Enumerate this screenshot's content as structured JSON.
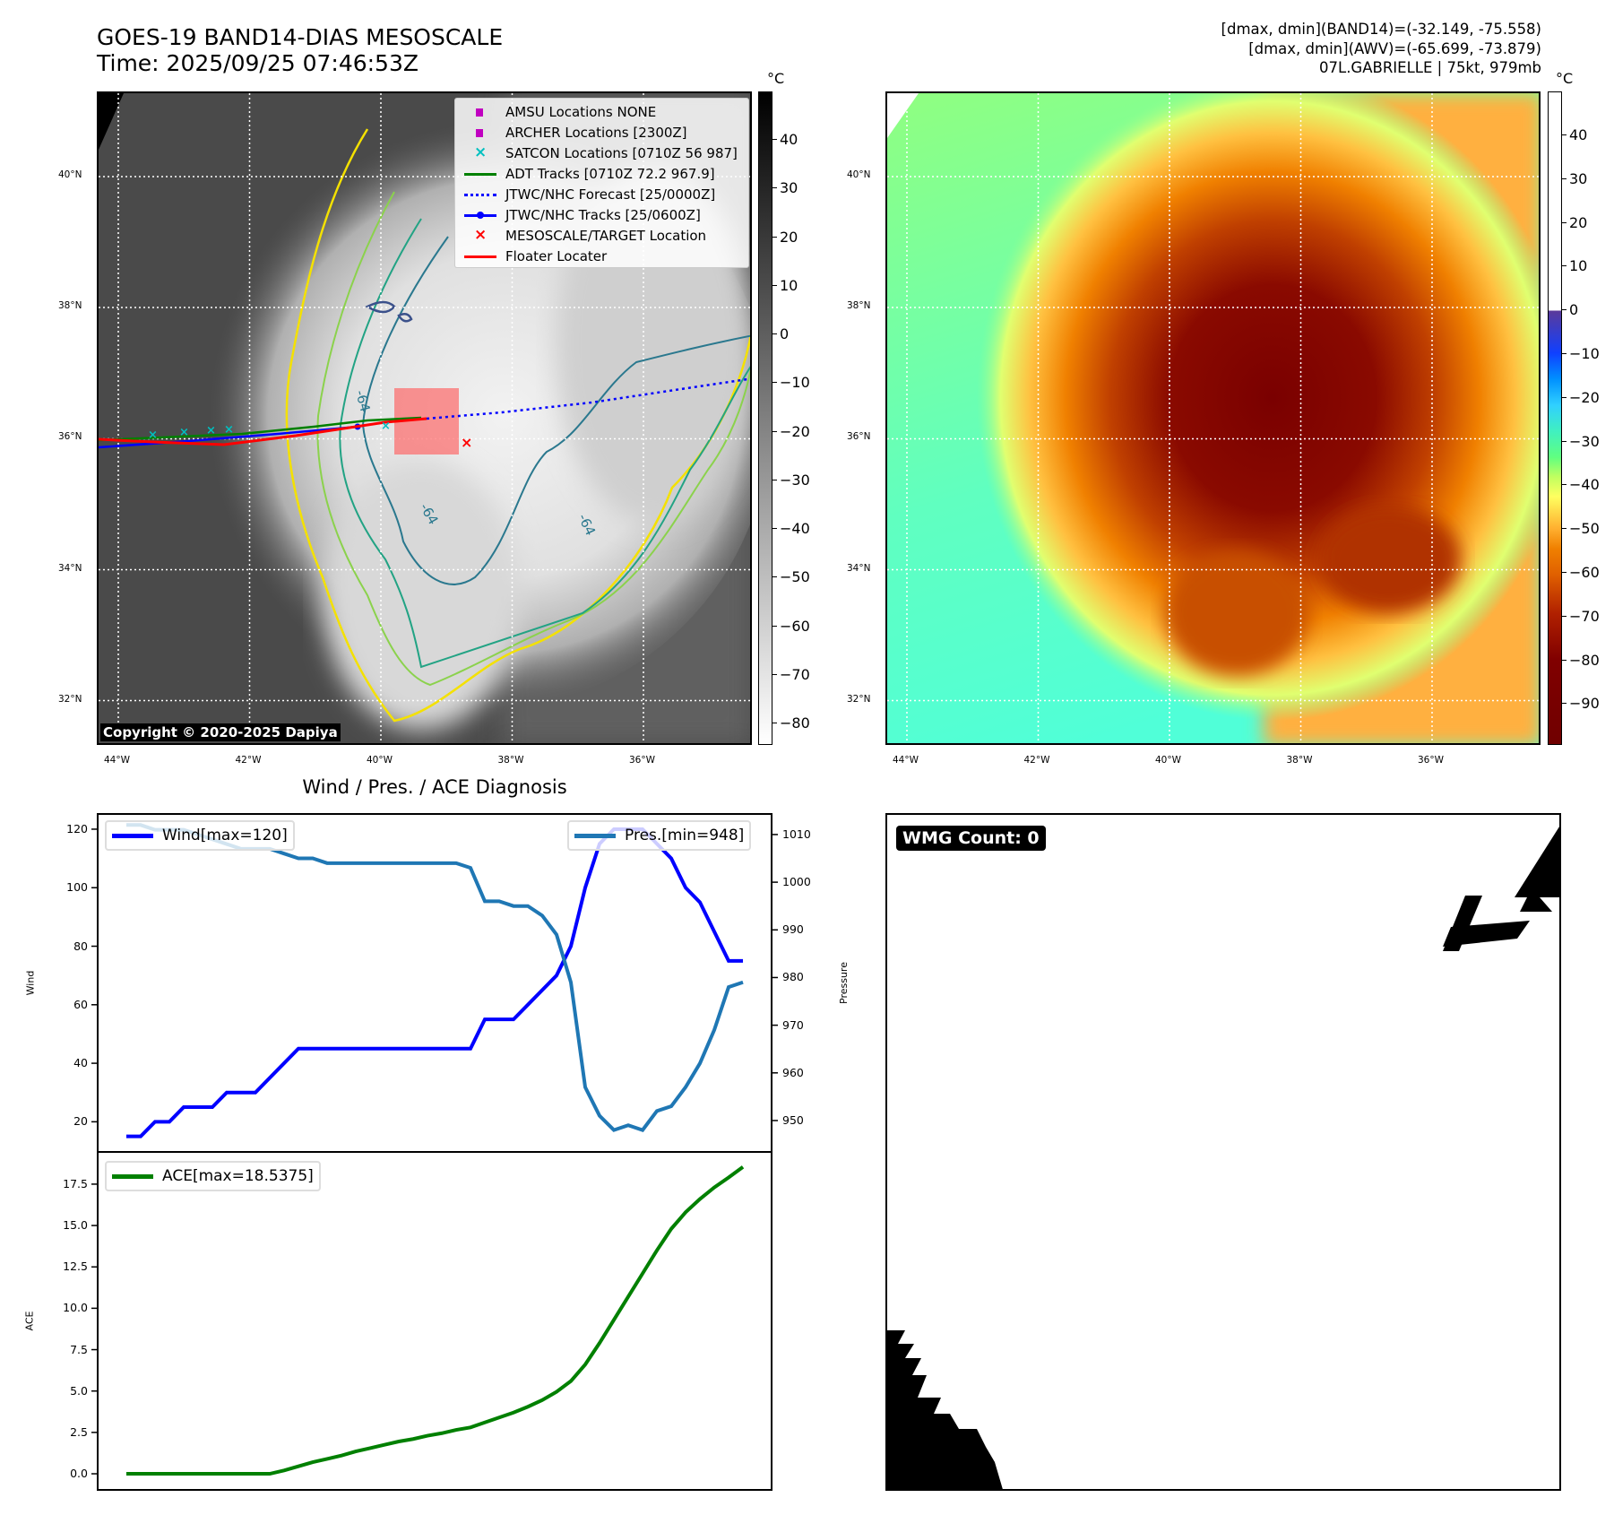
{
  "header": {
    "title_line1": "GOES-19 BAND14-DIAS MESOSCALE",
    "title_line2": "Time: 2025/09/25 07:46:53Z",
    "stats_line1": "[dmax, dmin](BAND14)=(-32.149, -75.558)",
    "stats_line2": "[dmax, dmin](AWV)=(-65.699, -73.879)",
    "stats_line3": "07L.GABRIELLE | 75kt, 979mb"
  },
  "maps": {
    "lon_labels": [
      "44°W",
      "42°W",
      "40°W",
      "38°W",
      "36°W"
    ],
    "lat_labels": [
      "40°N",
      "38°N",
      "36°N",
      "34°N",
      "32°N"
    ],
    "unit": "°C",
    "cbar1_ticks": [
      "40",
      "30",
      "20",
      "10",
      "0",
      "−10",
      "−20",
      "−30",
      "−40",
      "−50",
      "−60",
      "−70",
      "−80"
    ],
    "cbar2_ticks": [
      "40",
      "30",
      "20",
      "10",
      "0",
      "−10",
      "−20",
      "−30",
      "−40",
      "−50",
      "−60",
      "−70",
      "−80",
      "−90"
    ],
    "contour_label": "-64",
    "copyright": "Copyright © 2020-2025 Dapiya",
    "legend": [
      {
        "label": "AMSU Locations NONE",
        "color": "#c000c0",
        "symbol": "square"
      },
      {
        "label": "ARCHER Locations [2300Z]",
        "color": "#c000c0",
        "symbol": "square"
      },
      {
        "label": "SATCON Locations [0710Z 56 987]",
        "color": "#00c0c0",
        "symbol": "x"
      },
      {
        "label": "ADT Tracks [0710Z 72.2 967.9]",
        "color": "#008000",
        "symbol": "line"
      },
      {
        "label": "JTWC/NHC Forecast [25/0000Z]",
        "color": "#0000ff",
        "symbol": "dotted"
      },
      {
        "label": "JTWC/NHC Tracks [25/0600Z]",
        "color": "#0000ff",
        "symbol": "line-dot"
      },
      {
        "label": "MESOSCALE/TARGET Location",
        "color": "#ff0000",
        "symbol": "x"
      },
      {
        "label": "Floater Locater",
        "color": "#ff0000",
        "symbol": "line"
      }
    ]
  },
  "chart_data": [
    {
      "type": "line",
      "title": "Wind / Pres. / ACE Diagnosis",
      "ylabel": "Wind",
      "y2label": "Pressure",
      "ylim": [
        10,
        125.5
      ],
      "y2lim": [
        943.6,
        1014.5
      ],
      "xlim": [
        -2.06,
        45.06
      ],
      "yticks": [
        20,
        40,
        60,
        80,
        100,
        120
      ],
      "y2ticks": [
        950,
        960,
        970,
        980,
        990,
        1000,
        1010
      ],
      "series": [
        {
          "name": "Wind[max=120]",
          "color": "#0000ff",
          "axis": "left",
          "values": [
            15,
            15,
            20,
            20,
            25,
            25,
            25,
            30,
            30,
            30,
            35,
            40,
            45,
            45,
            45,
            45,
            45,
            45,
            45,
            45,
            45,
            45,
            45,
            45,
            45,
            55,
            55,
            55,
            60,
            65,
            70,
            80,
            100,
            115,
            120,
            120,
            120,
            115,
            110,
            100,
            95,
            85,
            75,
            75
          ]
        },
        {
          "name": "Pres.[min=948]",
          "color": "#1f77b4",
          "axis": "right",
          "values": [
            1012,
            1012,
            1011,
            1011,
            1011,
            1010,
            1009,
            1008,
            1007,
            1007,
            1007,
            1006,
            1005,
            1005,
            1004,
            1004,
            1004,
            1004,
            1004,
            1004,
            1004,
            1004,
            1004,
            1004,
            1003,
            996,
            996,
            995,
            995,
            993,
            989,
            979,
            957,
            951,
            948,
            949,
            948,
            952,
            953,
            957,
            962,
            969,
            978,
            979
          ]
        }
      ]
    },
    {
      "type": "line",
      "ylabel": "ACE",
      "ylim": [
        -0.92,
        19.5
      ],
      "xlim": [
        -2.06,
        45.06
      ],
      "yticks": [
        "0.0",
        "2.5",
        "5.0",
        "7.5",
        "10.0",
        "12.5",
        "15.0",
        "17.5"
      ],
      "series": [
        {
          "name": "ACE[max=18.5375]",
          "color": "#008000",
          "values": [
            0,
            0,
            0,
            0,
            0,
            0,
            0,
            0,
            0,
            0,
            0,
            0.2,
            0.45,
            0.7,
            0.9,
            1.1,
            1.35,
            1.55,
            1.75,
            1.95,
            2.1,
            2.3,
            2.45,
            2.65,
            2.8,
            3.1,
            3.4,
            3.7,
            4.05,
            4.45,
            4.95,
            5.6,
            6.6,
            7.9,
            9.3,
            10.7,
            12.1,
            13.5,
            14.8,
            15.8,
            16.6,
            17.3,
            17.9,
            18.54
          ]
        }
      ]
    }
  ],
  "wmg": {
    "label": "WMG Count: 0"
  }
}
